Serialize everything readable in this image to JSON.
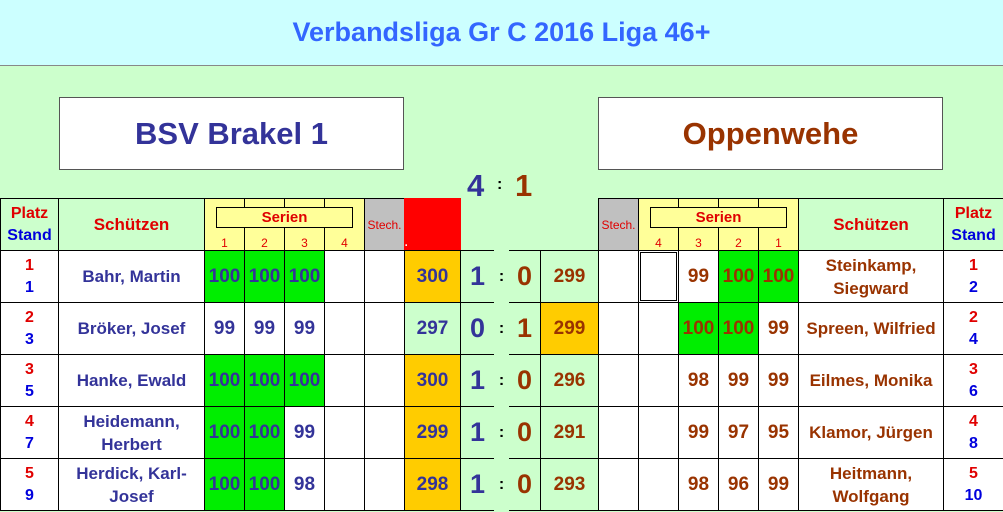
{
  "title": "Verbandsliga Gr C 2016 Liga 46+",
  "home": {
    "team": "BSV Brakel 1",
    "score": "4"
  },
  "guest": {
    "team": "Oppenwehe",
    "score": "1"
  },
  "score_separator": ":",
  "colors": {
    "home_text": "#333399",
    "guest_text": "#993300",
    "hundred": "#00ee00",
    "winner_total": "#ffcc00",
    "background": "#ccffcc",
    "title_bg": "#ccffff",
    "title_text": "#3366ff"
  },
  "headers": {
    "platz": "Platz",
    "stand": "Stand",
    "schuetzen": "Schützen",
    "serien": "Serien",
    "stech": "Stech.",
    "series_numbers": [
      "1",
      "2",
      "3",
      "4"
    ],
    "red_marker": "."
  },
  "rows": [
    {
      "home": {
        "platz": "1",
        "stand": "1",
        "name": "Bahr, Martin",
        "series": [
          "100",
          "100",
          "100",
          ""
        ],
        "green": [
          1,
          1,
          1,
          0
        ],
        "stech": "",
        "total": "300",
        "win": true,
        "points": "1"
      },
      "guest": {
        "platz": "1",
        "stand": "2",
        "name": "Steinkamp, Siegward",
        "series": [
          "100",
          "100",
          "99",
          ""
        ],
        "green": [
          1,
          1,
          0,
          0
        ],
        "stech": "",
        "total": "299",
        "win": false,
        "points": "0"
      }
    },
    {
      "home": {
        "platz": "2",
        "stand": "3",
        "name": "Bröker, Josef",
        "series": [
          "99",
          "99",
          "99",
          ""
        ],
        "green": [
          0,
          0,
          0,
          0
        ],
        "stech": "",
        "total": "297",
        "win": false,
        "points": "0"
      },
      "guest": {
        "platz": "2",
        "stand": "4",
        "name": "Spreen, Wilfried",
        "series": [
          "99",
          "100",
          "100",
          ""
        ],
        "green": [
          0,
          1,
          1,
          0
        ],
        "stech": "",
        "total": "299",
        "win": true,
        "points": "1"
      }
    },
    {
      "home": {
        "platz": "3",
        "stand": "5",
        "name": "Hanke, Ewald",
        "series": [
          "100",
          "100",
          "100",
          ""
        ],
        "green": [
          1,
          1,
          1,
          0
        ],
        "stech": "",
        "total": "300",
        "win": true,
        "points": "1"
      },
      "guest": {
        "platz": "3",
        "stand": "6",
        "name": "Eilmes, Monika",
        "series": [
          "99",
          "99",
          "98",
          ""
        ],
        "green": [
          0,
          0,
          0,
          0
        ],
        "stech": "",
        "total": "296",
        "win": false,
        "points": "0"
      }
    },
    {
      "home": {
        "platz": "4",
        "stand": "7",
        "name": "Heidemann, Herbert",
        "series": [
          "100",
          "100",
          "99",
          ""
        ],
        "green": [
          1,
          1,
          0,
          0
        ],
        "stech": "",
        "total": "299",
        "win": true,
        "points": "1"
      },
      "guest": {
        "platz": "4",
        "stand": "8",
        "name": "Klamor, Jürgen",
        "series": [
          "95",
          "97",
          "99",
          ""
        ],
        "green": [
          0,
          0,
          0,
          0
        ],
        "stech": "",
        "total": "291",
        "win": false,
        "points": "0"
      }
    },
    {
      "home": {
        "platz": "5",
        "stand": "9",
        "name": "Herdick, Karl-Josef",
        "series": [
          "100",
          "100",
          "98",
          ""
        ],
        "green": [
          1,
          1,
          0,
          0
        ],
        "stech": "",
        "total": "298",
        "win": true,
        "points": "1"
      },
      "guest": {
        "platz": "5",
        "stand": "10",
        "name": "Heitmann, Wolfgang",
        "series": [
          "99",
          "96",
          "98",
          ""
        ],
        "green": [
          0,
          0,
          0,
          0
        ],
        "stech": "",
        "total": "293",
        "win": false,
        "points": "0"
      }
    }
  ]
}
